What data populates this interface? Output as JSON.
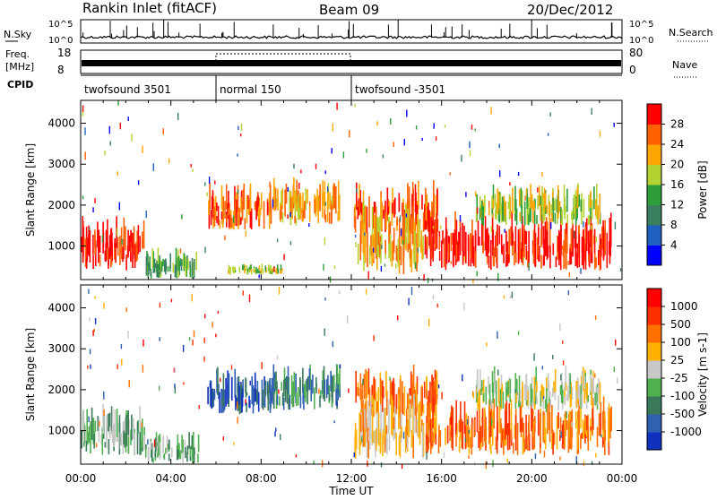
{
  "header": {
    "station": "Rankin Inlet (fitACF)",
    "beam": "Beam 09",
    "date": "20/Dec/2012"
  },
  "strips": {
    "nsky_label": "N.Sky",
    "nsky_ticks": [
      "10^5",
      "10^0"
    ],
    "nsearch_label": "N.Search",
    "nsearch_ticks": [
      "10^5",
      "10^0"
    ],
    "freq_label_1": "Freq.",
    "freq_label_2": "[MHz]",
    "freq_ticks": [
      "18",
      "8"
    ],
    "nave_label": "Nave",
    "nave_ticks": [
      "80",
      "0"
    ],
    "cpid_label": "CPID",
    "cpid_modes": [
      {
        "name": "twofsound 3501",
        "start": 0,
        "end": 6
      },
      {
        "name": "normal 150",
        "start": 6,
        "end": 12
      },
      {
        "name": "twofsound -3501",
        "start": 12,
        "end": 24
      }
    ]
  },
  "chart_data": [
    {
      "type": "heatmap",
      "panel": "power",
      "ylabel": "Slant Range [km]",
      "xlabel": "",
      "x_unit": "hours UT",
      "xlim": [
        0,
        24
      ],
      "ylim": [
        180,
        4560
      ],
      "yticks": [
        1000,
        2000,
        3000,
        4000
      ],
      "colorbar": {
        "label": "Power [dB]",
        "ticks": [
          "4",
          "8",
          "12",
          "16",
          "20",
          "24",
          "28"
        ],
        "colors": [
          "#0000ff",
          "#2060c0",
          "#3a8060",
          "#2e9e3a",
          "#b4d232",
          "#ffa500",
          "#ff6000",
          "#ff0000"
        ]
      },
      "echo_regions": [
        {
          "x": [
            0,
            2.8
          ],
          "y": [
            400,
            1400
          ],
          "level": 7
        },
        {
          "x": [
            2.8,
            5.2
          ],
          "y": [
            200,
            800
          ],
          "level": 3
        },
        {
          "x": [
            5.6,
            8.5
          ],
          "y": [
            1400,
            2300
          ],
          "level": 6
        },
        {
          "x": [
            8.5,
            11.5
          ],
          "y": [
            1500,
            2400
          ],
          "level": 5
        },
        {
          "x": [
            6.5,
            9
          ],
          "y": [
            300,
            500
          ],
          "level": 4
        },
        {
          "x": [
            12.1,
            15.8
          ],
          "y": [
            1300,
            2300
          ],
          "level": 6
        },
        {
          "x": [
            12.1,
            15.2
          ],
          "y": [
            300,
            1600
          ],
          "level": 5
        },
        {
          "x": [
            15.2,
            23.5
          ],
          "y": [
            400,
            1500
          ],
          "level": 7
        },
        {
          "x": [
            17.5,
            23
          ],
          "y": [
            1500,
            2300
          ],
          "level": 4
        }
      ]
    },
    {
      "type": "heatmap",
      "panel": "velocity",
      "ylabel": "Slant Range [km]",
      "xlabel": "Time UT",
      "x_unit": "hours UT",
      "xlim": [
        0,
        24
      ],
      "ylim": [
        180,
        4560
      ],
      "yticks": [
        1000,
        2000,
        3000,
        4000
      ],
      "xticks": [
        "00:00",
        "04:00",
        "08:00",
        "12:00",
        "16:00",
        "20:00",
        "00:00"
      ],
      "colorbar": {
        "label": "Velocity [m s-1]",
        "ticks": [
          "1000",
          "500",
          "100",
          "25",
          "-25",
          "-100",
          "-500",
          "-1000"
        ],
        "colors": [
          "#1030c0",
          "#3060b0",
          "#3a7a5a",
          "#50b050",
          "#c8c8c8",
          "#ffb000",
          "#ff7000",
          "#ff3000",
          "#ff0000"
        ]
      },
      "echo_regions": [
        {
          "x": [
            0,
            2.8
          ],
          "y": [
            400,
            1400
          ],
          "level": 3
        },
        {
          "x": [
            2.8,
            5.2
          ],
          "y": [
            200,
            800
          ],
          "level": 3
        },
        {
          "x": [
            5.6,
            8.5
          ],
          "y": [
            1400,
            2300
          ],
          "level": 1
        },
        {
          "x": [
            8.5,
            11.5
          ],
          "y": [
            1500,
            2400
          ],
          "level": 2
        },
        {
          "x": [
            12.1,
            15.8
          ],
          "y": [
            1300,
            2300
          ],
          "level": 6
        },
        {
          "x": [
            12.1,
            15.2
          ],
          "y": [
            300,
            1600
          ],
          "level": 5
        },
        {
          "x": [
            15.2,
            23.5
          ],
          "y": [
            400,
            1500
          ],
          "level": 6
        },
        {
          "x": [
            17.5,
            23
          ],
          "y": [
            1500,
            2300
          ],
          "level": 4
        }
      ]
    }
  ]
}
